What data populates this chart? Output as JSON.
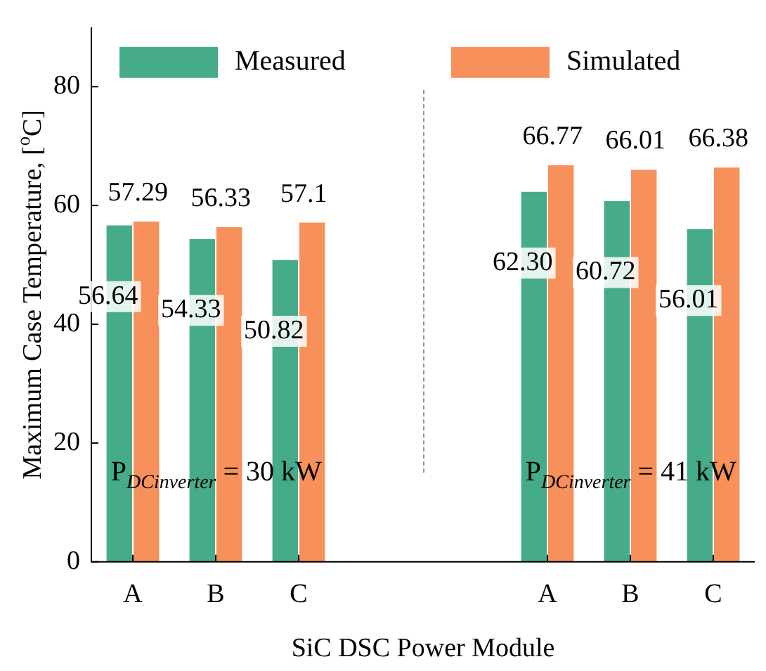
{
  "chart_data": {
    "type": "bar",
    "xlabel": "SiC DSC Power Module",
    "ylabel": "Maximum Case Temperature, [$^{o}$C]",
    "categories": [
      "A",
      "B",
      "C",
      null,
      null,
      "A",
      "B",
      "C"
    ],
    "series": [
      {
        "name": "Measured",
        "color": "#46ab8a",
        "values": [
          56.64,
          54.33,
          50.82,
          null,
          null,
          62.3,
          60.72,
          56.01
        ],
        "value_labels": [
          "56.64",
          "54.33",
          "50.82",
          null,
          null,
          "62.30",
          "60.72",
          "56.01"
        ]
      },
      {
        "name": "Simulated",
        "color": "#f7905a",
        "values": [
          57.29,
          56.33,
          57.1,
          null,
          null,
          66.77,
          66.01,
          66.38
        ],
        "value_labels": [
          "57.29",
          "56.33",
          "57.1",
          null,
          null,
          "66.77",
          "66.01",
          "66.38"
        ]
      }
    ],
    "ylim": [
      0,
      90
    ],
    "yticks": [
      0,
      20,
      40,
      60,
      80
    ],
    "grid": false,
    "legend": "top",
    "annotations": [
      "P$_{DCinverter}$ = 30 kW",
      "P$_{DCinverter}$ = 41 kW"
    ]
  }
}
